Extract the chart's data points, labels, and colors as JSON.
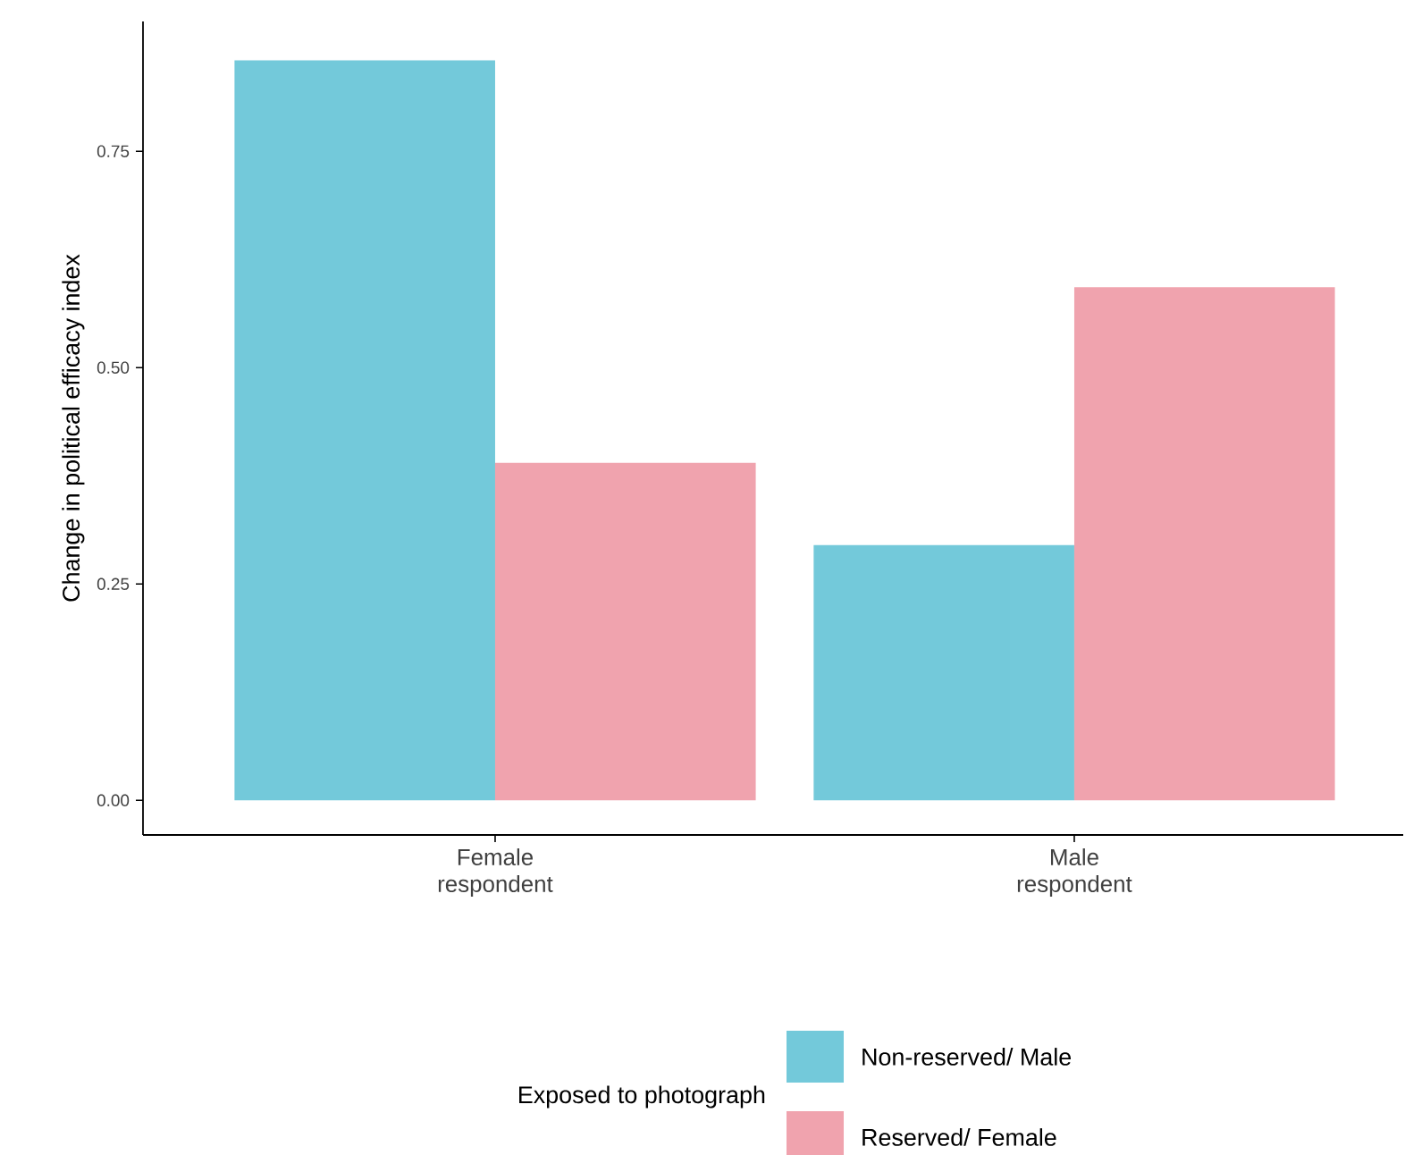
{
  "chart_data": {
    "type": "bar",
    "ylabel": "Change in political efficacy index",
    "categories": [
      "Female respondent",
      "Male respondent"
    ],
    "series": [
      {
        "name": "Non-reserved/ Male",
        "color": "#73c9da",
        "values": [
          0.855,
          0.295
        ]
      },
      {
        "name": "Reserved/ Female",
        "color": "#f0a3ae",
        "values": [
          0.39,
          0.593
        ]
      }
    ],
    "ylim": [
      -0.04,
      0.9
    ],
    "yticks": [
      {
        "value": 0,
        "label": "0.00"
      },
      {
        "value": 0.25,
        "label": "0.25"
      },
      {
        "value": 0.5,
        "label": "0.50"
      },
      {
        "value": 0.75,
        "label": "0.75"
      }
    ],
    "grid": false,
    "legend": "bottom",
    "legend_title": "Exposed to photograph"
  }
}
